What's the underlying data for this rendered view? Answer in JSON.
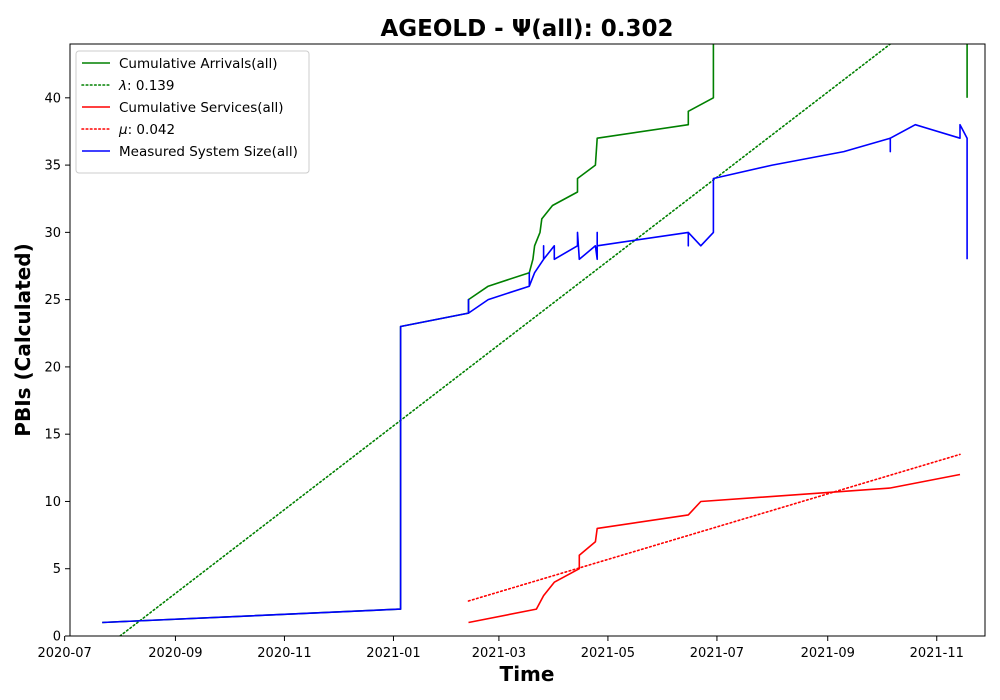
{
  "chart_data": {
    "type": "line",
    "title": "AGEOLD -  Ψ(all): 0.302",
    "xlabel": "Time",
    "ylabel": "PBIs (Calculated)",
    "xlim": [
      "2020-07-04",
      "2021-11-28"
    ],
    "ylim": [
      0,
      44
    ],
    "x_ticks": [
      "2020-07",
      "2020-09",
      "2020-11",
      "2021-01",
      "2021-03",
      "2021-05",
      "2021-07",
      "2021-09",
      "2021-11"
    ],
    "y_ticks": [
      0,
      5,
      10,
      15,
      20,
      25,
      30,
      35,
      40
    ],
    "grid": false,
    "legend_position": "top-left",
    "series": [
      {
        "name": "Cumulative Arrivals(all)",
        "color": "#008000",
        "style": "solid",
        "points": [
          [
            "2020-07-22",
            1
          ],
          [
            "2021-01-05",
            2
          ],
          [
            "2021-01-05",
            23
          ],
          [
            "2021-02-12",
            24
          ],
          [
            "2021-02-12",
            25
          ],
          [
            "2021-02-23",
            26
          ],
          [
            "2021-03-18",
            27
          ],
          [
            "2021-03-20",
            28
          ],
          [
            "2021-03-21",
            29
          ],
          [
            "2021-03-24",
            30
          ],
          [
            "2021-03-25",
            31
          ],
          [
            "2021-03-31",
            32
          ],
          [
            "2021-04-14",
            33
          ],
          [
            "2021-04-14",
            34
          ],
          [
            "2021-04-24",
            35
          ],
          [
            "2021-04-25",
            37
          ],
          [
            "2021-06-15",
            38
          ],
          [
            "2021-06-15",
            39
          ],
          [
            "2021-06-29",
            40
          ],
          [
            "2021-06-29",
            44
          ]
        ],
        "points_2": [
          [
            "2021-11-18",
            44
          ],
          [
            "2021-11-18",
            40
          ]
        ]
      },
      {
        "name": "λ: 0.139",
        "legend_prefix": "λ",
        "legend_value": ": 0.139",
        "color": "#008000",
        "style": "dotted",
        "points": [
          [
            "2020-08-01",
            0
          ],
          [
            "2021-10-06",
            44
          ]
        ]
      },
      {
        "name": "Cumulative Services(all)",
        "color": "#ff0000",
        "style": "solid",
        "points": [
          [
            "2021-02-12",
            1
          ],
          [
            "2021-03-22",
            2
          ],
          [
            "2021-03-26",
            3
          ],
          [
            "2021-04-01",
            4
          ],
          [
            "2021-04-15",
            5
          ],
          [
            "2021-04-15",
            6
          ],
          [
            "2021-04-24",
            7
          ],
          [
            "2021-04-25",
            8
          ],
          [
            "2021-06-15",
            9
          ],
          [
            "2021-06-22",
            10
          ],
          [
            "2021-10-06",
            11
          ],
          [
            "2021-11-14",
            12
          ]
        ]
      },
      {
        "name": "μ: 0.042",
        "legend_prefix": "μ",
        "legend_value": ": 0.042",
        "color": "#ff0000",
        "style": "dotted",
        "points": [
          [
            "2021-02-12",
            2.6
          ],
          [
            "2021-11-14",
            13.5
          ]
        ]
      },
      {
        "name": "Measured System Size(all)",
        "color": "#0000ff",
        "style": "solid",
        "points": [
          [
            "2020-07-22",
            1
          ],
          [
            "2021-01-05",
            2
          ],
          [
            "2021-01-05",
            23
          ],
          [
            "2021-02-12",
            24
          ],
          [
            "2021-02-12",
            25
          ],
          [
            "2021-02-12",
            24
          ],
          [
            "2021-02-23",
            25
          ],
          [
            "2021-03-18",
            26
          ],
          [
            "2021-03-18",
            27
          ],
          [
            "2021-03-18",
            26
          ],
          [
            "2021-03-21",
            27
          ],
          [
            "2021-03-26",
            28
          ],
          [
            "2021-03-26",
            29
          ],
          [
            "2021-03-26",
            28
          ],
          [
            "2021-04-01",
            29
          ],
          [
            "2021-04-01",
            28
          ],
          [
            "2021-04-14",
            29
          ],
          [
            "2021-04-14",
            30
          ],
          [
            "2021-04-15",
            28
          ],
          [
            "2021-04-24",
            29
          ],
          [
            "2021-04-25",
            28
          ],
          [
            "2021-04-25",
            30
          ],
          [
            "2021-04-25",
            29
          ],
          [
            "2021-06-15",
            30
          ],
          [
            "2021-06-15",
            29
          ],
          [
            "2021-06-15",
            30
          ],
          [
            "2021-06-22",
            29
          ],
          [
            "2021-06-29",
            30
          ],
          [
            "2021-06-29",
            34
          ],
          [
            "2021-08-01",
            35
          ],
          [
            "2021-09-10",
            36
          ],
          [
            "2021-10-06",
            37
          ],
          [
            "2021-10-06",
            36
          ],
          [
            "2021-10-06",
            37
          ],
          [
            "2021-10-20",
            38
          ],
          [
            "2021-11-14",
            37
          ],
          [
            "2021-11-14",
            38
          ],
          [
            "2021-11-18",
            37
          ],
          [
            "2021-11-18",
            28
          ]
        ]
      }
    ]
  }
}
